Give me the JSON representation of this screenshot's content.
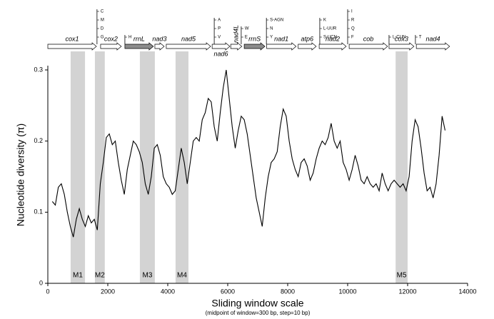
{
  "chart_data": {
    "type": "line",
    "ylabel": "Nucleotide diversity (π)",
    "xlabel": "Sliding window scale",
    "xlabel_note": "(midpoint of window=300 bp, step=10 bp)",
    "xlim": [
      0,
      14000
    ],
    "xticks": [
      0,
      2000,
      4000,
      6000,
      8000,
      10000,
      12000,
      14000
    ],
    "ylim": [
      0,
      0.3
    ],
    "yticks": [
      0,
      0.1,
      0.2,
      0.3
    ],
    "color": "#000000",
    "x": [
      150,
      250,
      350,
      450,
      550,
      650,
      750,
      850,
      950,
      1050,
      1150,
      1250,
      1350,
      1450,
      1550,
      1650,
      1750,
      1850,
      1950,
      2050,
      2150,
      2250,
      2350,
      2450,
      2550,
      2650,
      2750,
      2850,
      2950,
      3050,
      3150,
      3250,
      3350,
      3450,
      3550,
      3650,
      3750,
      3850,
      3950,
      4050,
      4150,
      4250,
      4350,
      4450,
      4550,
      4650,
      4750,
      4850,
      4950,
      5050,
      5150,
      5250,
      5350,
      5450,
      5550,
      5650,
      5750,
      5850,
      5950,
      6050,
      6150,
      6250,
      6350,
      6450,
      6550,
      6650,
      6750,
      6850,
      6950,
      7050,
      7150,
      7250,
      7350,
      7450,
      7550,
      7650,
      7750,
      7850,
      7950,
      8050,
      8150,
      8250,
      8350,
      8450,
      8550,
      8650,
      8750,
      8850,
      8950,
      9050,
      9150,
      9250,
      9350,
      9450,
      9550,
      9650,
      9750,
      9850,
      9950,
      10050,
      10150,
      10250,
      10350,
      10450,
      10550,
      10650,
      10750,
      10850,
      10950,
      11050,
      11150,
      11250,
      11350,
      11450,
      11550,
      11650,
      11750,
      11850,
      11950,
      12050,
      12150,
      12250,
      12350,
      12450,
      12550,
      12650,
      12750,
      12850,
      12950,
      13050,
      13150,
      13250
    ],
    "values": [
      0.115,
      0.11,
      0.135,
      0.14,
      0.125,
      0.1,
      0.08,
      0.065,
      0.09,
      0.105,
      0.09,
      0.08,
      0.095,
      0.085,
      0.09,
      0.075,
      0.14,
      0.17,
      0.205,
      0.21,
      0.195,
      0.2,
      0.17,
      0.145,
      0.125,
      0.16,
      0.18,
      0.2,
      0.195,
      0.185,
      0.17,
      0.14,
      0.125,
      0.15,
      0.19,
      0.195,
      0.18,
      0.15,
      0.14,
      0.135,
      0.125,
      0.13,
      0.16,
      0.19,
      0.17,
      0.14,
      0.17,
      0.2,
      0.205,
      0.2,
      0.23,
      0.24,
      0.26,
      0.255,
      0.22,
      0.2,
      0.24,
      0.275,
      0.3,
      0.26,
      0.22,
      0.19,
      0.215,
      0.235,
      0.23,
      0.21,
      0.18,
      0.15,
      0.12,
      0.1,
      0.08,
      0.12,
      0.15,
      0.17,
      0.175,
      0.185,
      0.22,
      0.245,
      0.235,
      0.2,
      0.175,
      0.16,
      0.15,
      0.17,
      0.175,
      0.165,
      0.145,
      0.155,
      0.175,
      0.19,
      0.2,
      0.195,
      0.205,
      0.225,
      0.2,
      0.19,
      0.2,
      0.17,
      0.16,
      0.145,
      0.16,
      0.18,
      0.165,
      0.145,
      0.14,
      0.15,
      0.14,
      0.135,
      0.14,
      0.13,
      0.155,
      0.14,
      0.13,
      0.14,
      0.145,
      0.14,
      0.135,
      0.14,
      0.13,
      0.15,
      0.2,
      0.23,
      0.22,
      0.19,
      0.155,
      0.13,
      0.135,
      0.12,
      0.14,
      0.18,
      0.235,
      0.215
    ],
    "regions": [
      {
        "label": "M1",
        "start": 760,
        "end": 1240
      },
      {
        "label": "M2",
        "start": 1570,
        "end": 1900
      },
      {
        "label": "M3",
        "start": 3070,
        "end": 3570
      },
      {
        "label": "M4",
        "start": 4260,
        "end": 4690
      },
      {
        "label": "M5",
        "start": 11600,
        "end": 12000
      }
    ],
    "region_color": "#d3d3d3",
    "genes": [
      {
        "name": "cox1",
        "start": 0,
        "end": 1620,
        "label": "above"
      },
      {
        "name": "cox2",
        "start": 1760,
        "end": 2450,
        "label": "above"
      },
      {
        "name": "rrnL",
        "start": 2570,
        "end": 3520,
        "label": "above",
        "color": "#8c8c8c"
      },
      {
        "name": "nad3",
        "start": 3570,
        "end": 3880,
        "label": "above"
      },
      {
        "name": "nad5",
        "start": 3950,
        "end": 5430,
        "label": "above"
      },
      {
        "name": "nad6",
        "start": 5480,
        "end": 6070,
        "label": "below"
      },
      {
        "name": "nad4L",
        "start": 6100,
        "end": 6470,
        "label": "vertical"
      },
      {
        "name": "rrnS",
        "start": 6550,
        "end": 7240,
        "label": "above",
        "color": "#8c8c8c"
      },
      {
        "name": "nad1",
        "start": 7300,
        "end": 8280,
        "label": "above"
      },
      {
        "name": "atp6",
        "start": 8350,
        "end": 8950,
        "label": "above"
      },
      {
        "name": "nad2",
        "start": 9050,
        "end": 9950,
        "label": "above"
      },
      {
        "name": "cob",
        "start": 10050,
        "end": 11330,
        "label": "above"
      },
      {
        "name": "cox3",
        "start": 11380,
        "end": 12210,
        "label": "above"
      },
      {
        "name": "nad4",
        "start": 12290,
        "end": 13400,
        "label": "above"
      }
    ],
    "trnas": [
      {
        "at": 1640,
        "labels": [
          "C",
          "M",
          "D",
          "G"
        ]
      },
      {
        "at": 2570,
        "labels": [
          "H"
        ]
      },
      {
        "at": 5550,
        "labels": [
          "A",
          "P",
          "V"
        ]
      },
      {
        "at": 6450,
        "labels": [
          "W",
          "E"
        ]
      },
      {
        "at": 7290,
        "labels": [
          "S-AGN",
          "N",
          "Y"
        ]
      },
      {
        "at": 9070,
        "labels": [
          "K",
          "L-UUR",
          "S-UCN"
        ]
      },
      {
        "at": 10000,
        "labels": [
          "I",
          "R",
          "Q",
          "F"
        ]
      },
      {
        "at": 11380,
        "labels": [
          "L-CUN"
        ]
      },
      {
        "at": 12260,
        "labels": [
          "T"
        ]
      }
    ]
  }
}
